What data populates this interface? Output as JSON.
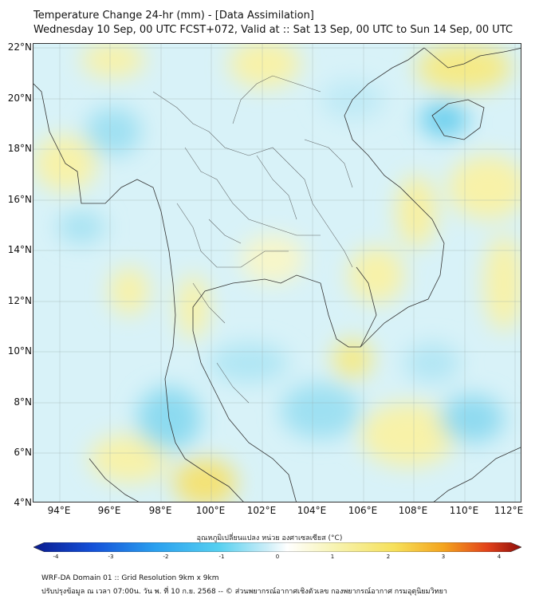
{
  "header": {
    "title": "Temperature Change 24-hr (mm) - [Data Assimilation]",
    "subtitle": "Wednesday 10 Sep, 00 UTC FCST+072, Valid at :: Sat 13 Sep, 00 UTC to Sun 14 Sep, 00 UTC"
  },
  "axes": {
    "lat_labels": [
      "22°N",
      "20°N",
      "18°N",
      "16°N",
      "14°N",
      "12°N",
      "10°N",
      "8°N",
      "6°N",
      "4°N"
    ],
    "lon_labels": [
      "94°E",
      "96°E",
      "98°E",
      "100°E",
      "102°E",
      "104°E",
      "106°E",
      "108°E",
      "110°E",
      "112°E"
    ]
  },
  "colorbar": {
    "title": "อุณหภูมิเปลี่ยนแปลง หน่วย องศาเซลเซียส (°C)",
    "ticks": [
      "-4",
      "-3",
      "-2",
      "-1",
      "0",
      "1",
      "2",
      "3",
      "4"
    ],
    "colors": [
      "#0a1b8f",
      "#1450d8",
      "#2aa0ef",
      "#56d0f0",
      "#cdeef8",
      "#ffffff",
      "#f7f3b0",
      "#f6e05a",
      "#f4a41e",
      "#e2421a",
      "#8e0d0a"
    ]
  },
  "footer": {
    "line1": "WRF-DA Domain 01 :: Grid Resolution 9km x 9km",
    "line2": "ปรับปรุงข้อมูล ณ เวลา 07:00น. วัน พ. ที่ 10 ก.ย. 2568 -- © ส่วนพยากรณ์อากาศเชิงตัวเลข กองพยากรณ์อากาศ กรมอุตุนิยมวิทยา"
  }
}
